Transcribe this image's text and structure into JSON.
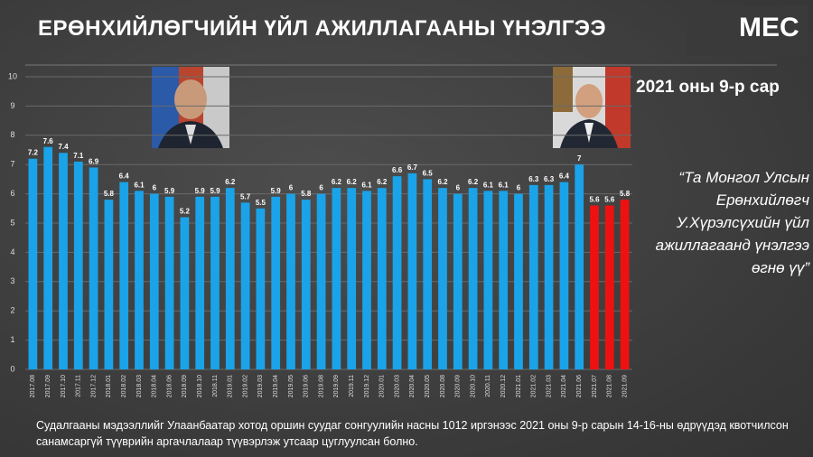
{
  "logo": "MEC",
  "question": "“Та Монгол Улсын Ерөнхийлөгч У.Хүрэлсүхийн үйл ажиллагаанд үнэлгээ өгнө үү”",
  "footnote": "Судалгааны мэдээллийг Улаанбаатар хотод оршин суудаг сонгуулийн насны 1012 иргэнээс 2021 оны 9-р сарын 14-16-ны өдрүүдэд квотчилсон санамсаргүй түүврийн аргачлалаар түүвэрлэж утсаар цуглуулсан болно.",
  "chart_data": {
    "type": "bar",
    "title": "ЕРӨНХИЙЛӨГЧИЙН ҮЙЛ АЖИЛЛАГААНЫ ҮНЭЛГЭЭ",
    "subtitle": "2021 оны 9-р сар",
    "categories": [
      "2017.08",
      "2017.09",
      "2017.10",
      "2017.11",
      "2017.12",
      "2018.01",
      "2018.02",
      "2018.03",
      "2018.04",
      "2018.06",
      "2018.09",
      "2018.10",
      "2018.11",
      "2019.01",
      "2019.02",
      "2019.03",
      "2019.04",
      "2019.05",
      "2019.06",
      "2019.08",
      "2019.09",
      "2019.11",
      "2019.12",
      "2020.01",
      "2020.03",
      "2020.04",
      "2020.05",
      "2020.08",
      "2020.09",
      "2020.10",
      "2020.11",
      "2020.12",
      "2021.01",
      "2021.02",
      "2021.03",
      "2021.04",
      "2021.06",
      "2021.07",
      "2021.08",
      "2021.09"
    ],
    "values": [
      7.2,
      7.6,
      7.4,
      7.1,
      6.9,
      5.8,
      6.4,
      6.1,
      6,
      5.9,
      5.2,
      5.9,
      5.9,
      6.2,
      5.7,
      5.5,
      5.9,
      6,
      5.8,
      6,
      6.2,
      6.2,
      6.1,
      6.2,
      6.6,
      6.7,
      6.5,
      6.2,
      6,
      6.2,
      6.1,
      6.1,
      6,
      6.3,
      6.3,
      6.4,
      7,
      5.6,
      5.6,
      5.8
    ],
    "colors": [
      "#1aa3e8",
      "#1aa3e8",
      "#1aa3e8",
      "#1aa3e8",
      "#1aa3e8",
      "#1aa3e8",
      "#1aa3e8",
      "#1aa3e8",
      "#1aa3e8",
      "#1aa3e8",
      "#1aa3e8",
      "#1aa3e8",
      "#1aa3e8",
      "#1aa3e8",
      "#1aa3e8",
      "#1aa3e8",
      "#1aa3e8",
      "#1aa3e8",
      "#1aa3e8",
      "#1aa3e8",
      "#1aa3e8",
      "#1aa3e8",
      "#1aa3e8",
      "#1aa3e8",
      "#1aa3e8",
      "#1aa3e8",
      "#1aa3e8",
      "#1aa3e8",
      "#1aa3e8",
      "#1aa3e8",
      "#1aa3e8",
      "#1aa3e8",
      "#1aa3e8",
      "#1aa3e8",
      "#1aa3e8",
      "#1aa3e8",
      "#1aa3e8",
      "#ee1111",
      "#ee1111",
      "#ee1111"
    ],
    "ylim": [
      0,
      10
    ],
    "yticks": [
      0,
      1,
      2,
      3,
      4,
      5,
      6,
      7,
      8,
      9,
      10
    ],
    "grid": true
  }
}
